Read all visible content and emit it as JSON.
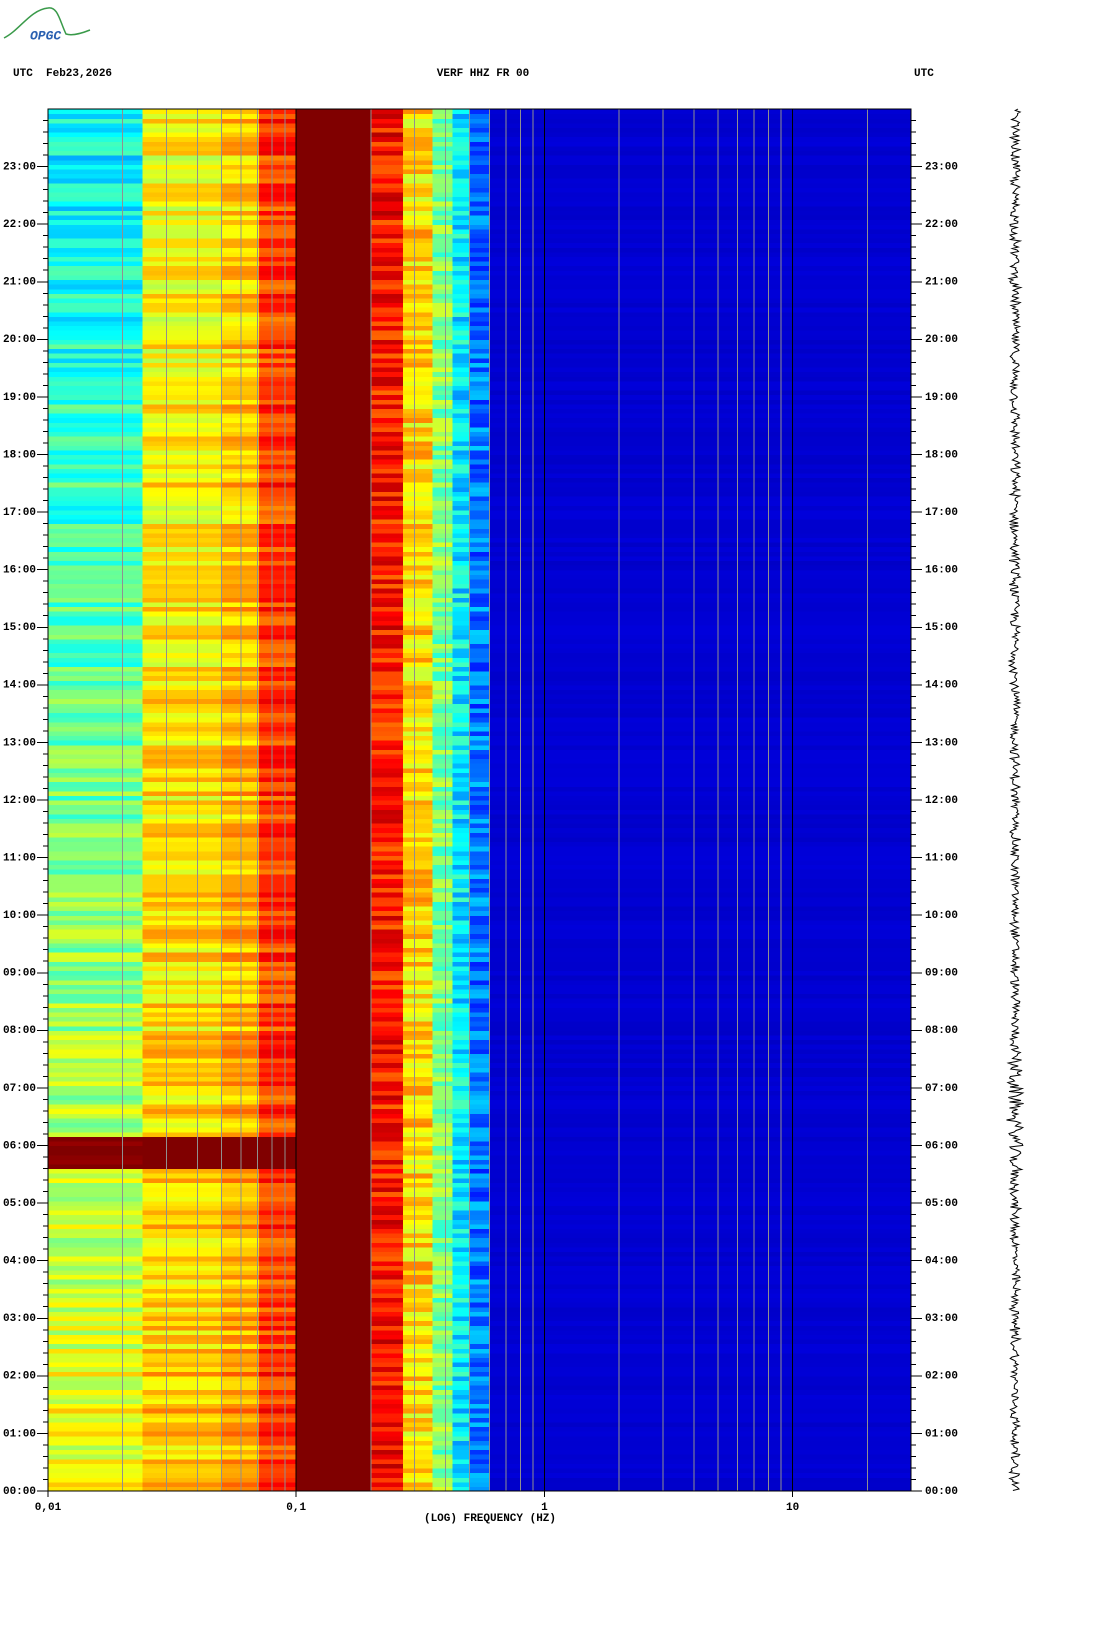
{
  "logo": "OPGC",
  "chart_data": {
    "type": "spectrogram",
    "title": "VERF HHZ FR 00",
    "left_header": "UTC  Feb23,2026",
    "right_header": "UTC",
    "x_label": "(LOG) FREQUENCY (HZ)",
    "x_log": true,
    "colormap": "jet",
    "xlim": [
      0.01,
      30
    ],
    "xticks": [
      {
        "value": 0.01,
        "label": "0,01"
      },
      {
        "value": 0.1,
        "label": "0,1"
      },
      1,
      10
    ],
    "ylim": [
      0,
      24
    ],
    "yticks": [
      {
        "value": 0,
        "label": "00:00"
      },
      {
        "value": 1,
        "label": "01:00"
      },
      {
        "value": 2,
        "label": "02:00"
      },
      {
        "value": 3,
        "label": "03:00"
      },
      {
        "value": 4,
        "label": "04:00"
      },
      {
        "value": 5,
        "label": "05:00"
      },
      {
        "value": 6,
        "label": "06:00"
      },
      {
        "value": 7,
        "label": "07:00"
      },
      {
        "value": 8,
        "label": "08:00"
      },
      {
        "value": 9,
        "label": "09:00"
      },
      {
        "value": 10,
        "label": "10:00"
      },
      {
        "value": 11,
        "label": "11:00"
      },
      {
        "value": 12,
        "label": "12:00"
      },
      {
        "value": 13,
        "label": "13:00"
      },
      {
        "value": 14,
        "label": "14:00"
      },
      {
        "value": 15,
        "label": "15:00"
      },
      {
        "value": 16,
        "label": "16:00"
      },
      {
        "value": 17,
        "label": "17:00"
      },
      {
        "value": 18,
        "label": "18:00"
      },
      {
        "value": 19,
        "label": "19:00"
      },
      {
        "value": 20,
        "label": "20:00"
      },
      {
        "value": 21,
        "label": "21:00"
      },
      {
        "value": 22,
        "label": "22:00"
      },
      {
        "value": 23,
        "label": "23:00"
      }
    ]
  }
}
